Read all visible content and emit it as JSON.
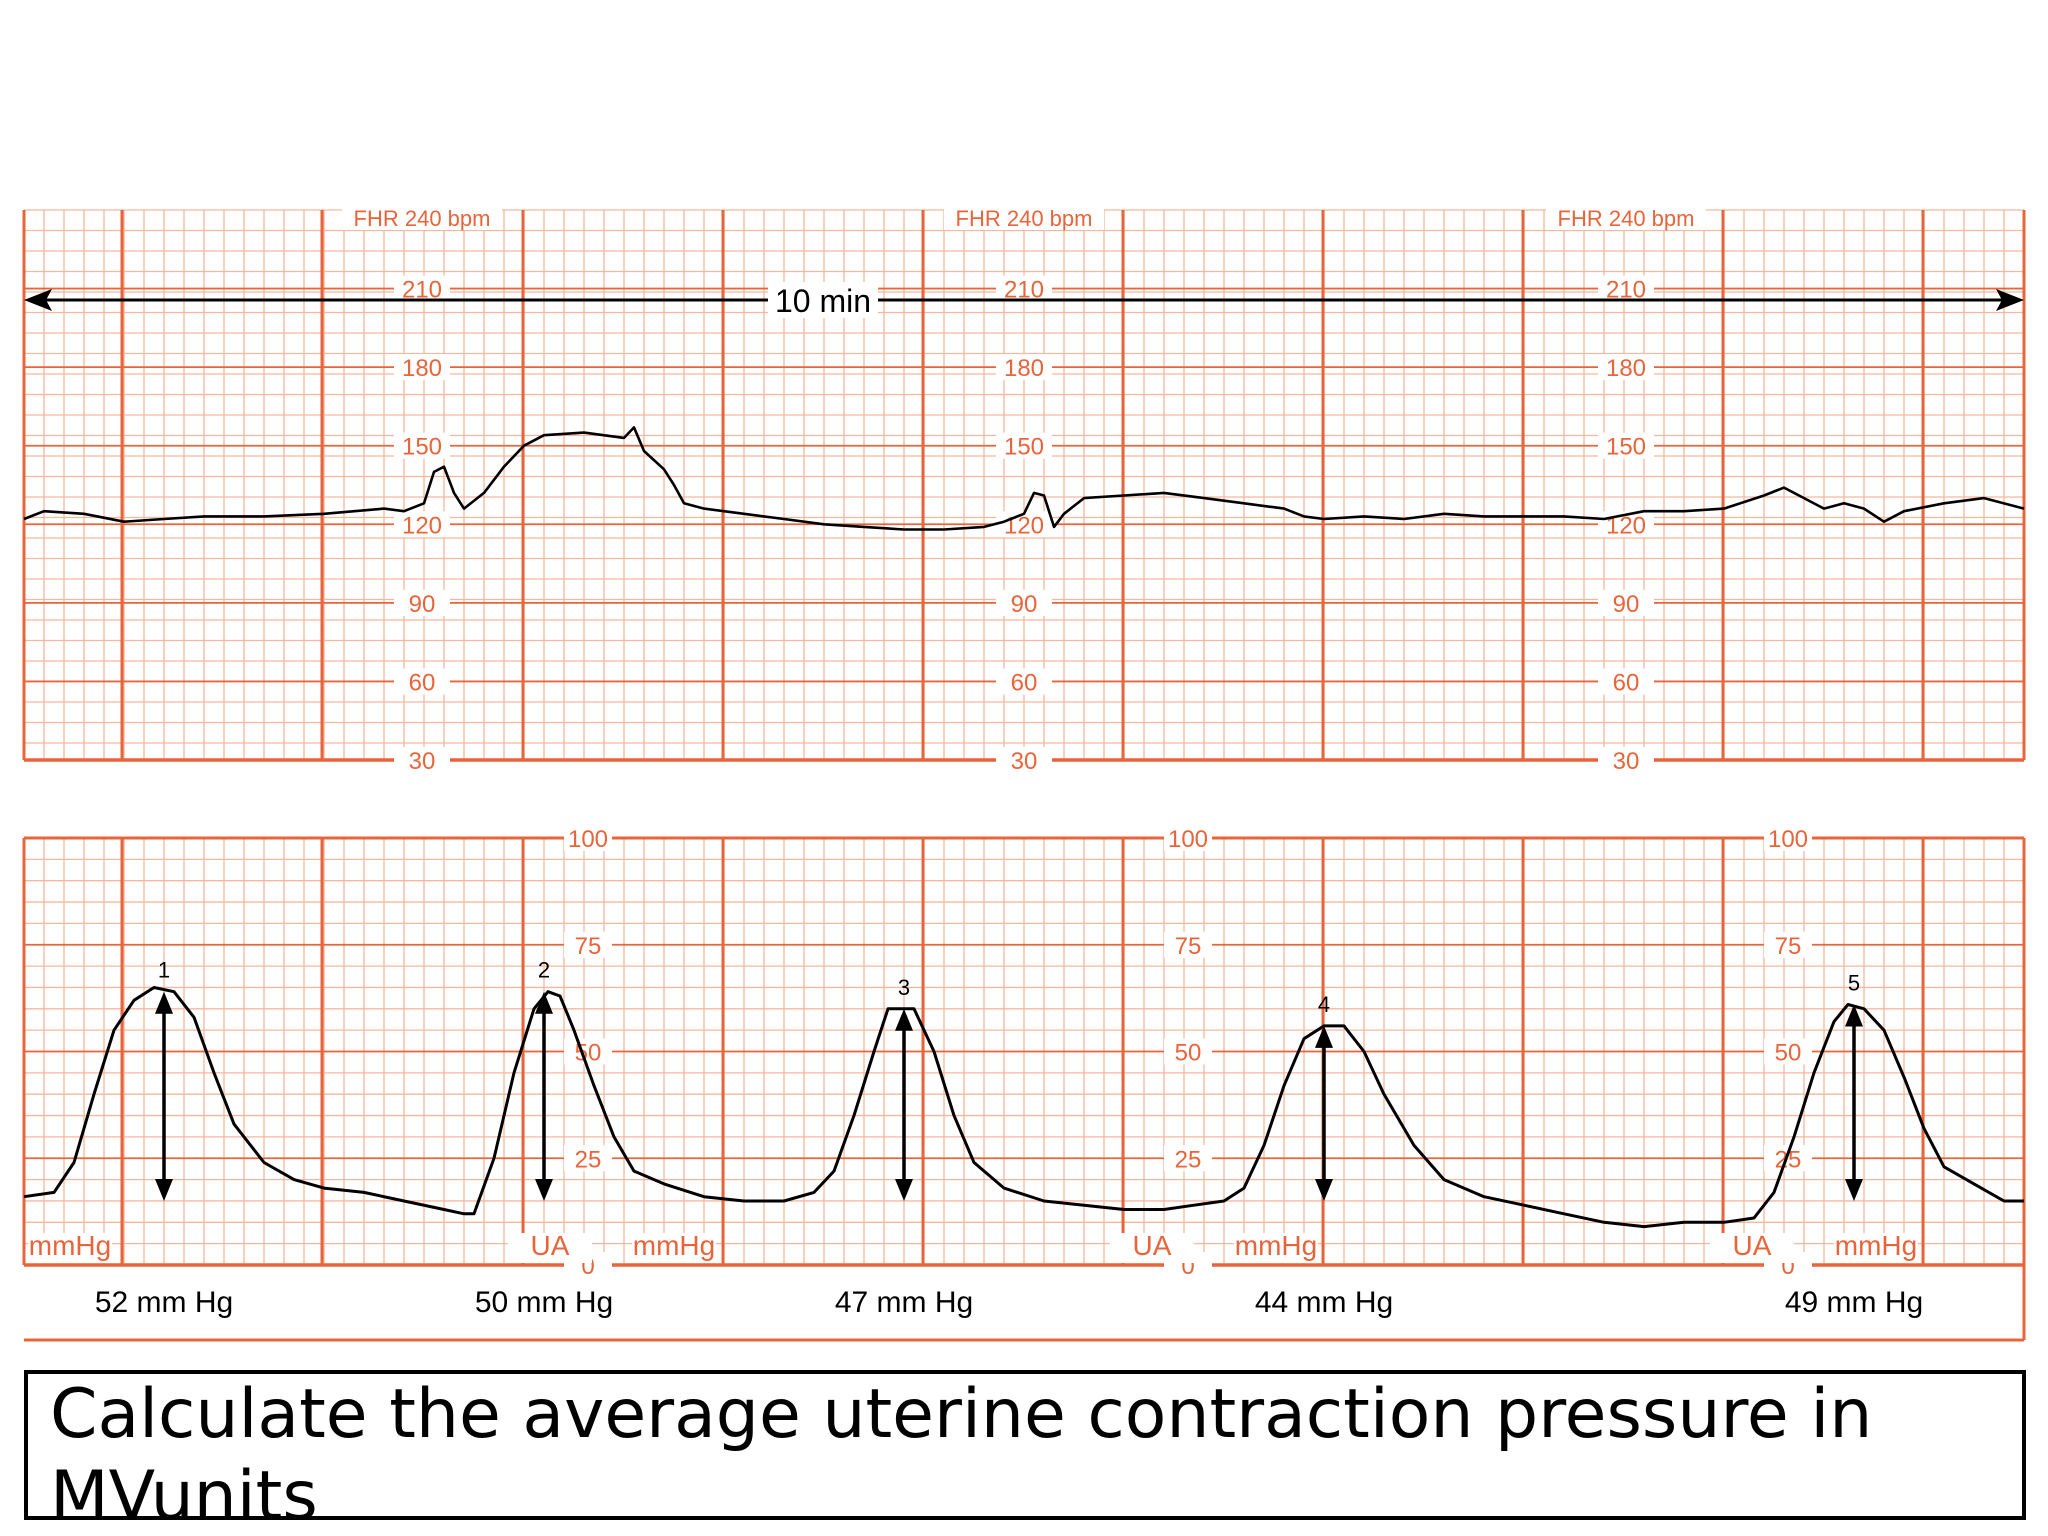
{
  "colors": {
    "grid_minor": "#f5b79e",
    "grid_major": "#e8643a",
    "trace": "#000000",
    "background": "#ffffff"
  },
  "chart_data": [
    {
      "type": "line",
      "title": "",
      "scale_label": "FHR 240 bpm",
      "duration_label": "10 min",
      "xlabel": "",
      "ylabel": "",
      "xlim": [
        0,
        10
      ],
      "ylim": [
        30,
        240
      ],
      "yticks": [
        "210",
        "180",
        "150",
        "120",
        "90",
        "60",
        "30"
      ],
      "series": [
        {
          "points": [
            [
              0.0,
              122
            ],
            [
              0.1,
              125
            ],
            [
              0.3,
              124
            ],
            [
              0.5,
              121
            ],
            [
              0.7,
              122
            ],
            [
              0.9,
              123
            ],
            [
              1.2,
              123
            ],
            [
              1.5,
              124
            ],
            [
              1.8,
              126
            ],
            [
              1.9,
              125
            ],
            [
              2.0,
              128
            ],
            [
              2.05,
              140
            ],
            [
              2.1,
              142
            ],
            [
              2.15,
              132
            ],
            [
              2.2,
              126
            ],
            [
              2.3,
              132
            ],
            [
              2.4,
              142
            ],
            [
              2.5,
              150
            ],
            [
              2.6,
              154
            ],
            [
              2.8,
              155
            ],
            [
              3.0,
              153
            ],
            [
              3.05,
              157
            ],
            [
              3.1,
              148
            ],
            [
              3.2,
              141
            ],
            [
              3.25,
              135
            ],
            [
              3.3,
              128
            ],
            [
              3.4,
              126
            ],
            [
              3.6,
              124
            ],
            [
              3.8,
              122
            ],
            [
              4.0,
              120
            ],
            [
              4.2,
              119
            ],
            [
              4.4,
              118
            ],
            [
              4.6,
              118
            ],
            [
              4.8,
              119
            ],
            [
              4.9,
              121
            ],
            [
              5.0,
              124
            ],
            [
              5.05,
              132
            ],
            [
              5.1,
              131
            ],
            [
              5.15,
              119
            ],
            [
              5.2,
              124
            ],
            [
              5.3,
              130
            ],
            [
              5.5,
              131
            ],
            [
              5.7,
              132
            ],
            [
              5.9,
              130
            ],
            [
              6.1,
              128
            ],
            [
              6.3,
              126
            ],
            [
              6.4,
              123
            ],
            [
              6.5,
              122
            ],
            [
              6.7,
              123
            ],
            [
              6.9,
              122
            ],
            [
              7.1,
              124
            ],
            [
              7.3,
              123
            ],
            [
              7.5,
              123
            ],
            [
              7.7,
              123
            ],
            [
              7.9,
              122
            ],
            [
              8.1,
              125
            ],
            [
              8.3,
              125
            ],
            [
              8.5,
              126
            ],
            [
              8.7,
              131
            ],
            [
              8.8,
              134
            ],
            [
              8.9,
              130
            ],
            [
              9.0,
              126
            ],
            [
              9.1,
              128
            ],
            [
              9.2,
              126
            ],
            [
              9.3,
              121
            ],
            [
              9.4,
              125
            ],
            [
              9.6,
              128
            ],
            [
              9.8,
              130
            ],
            [
              10.0,
              126
            ]
          ]
        }
      ]
    },
    {
      "type": "line",
      "title": "",
      "xlabel": "",
      "ylabel": "",
      "xlim": [
        0,
        10
      ],
      "ylim": [
        0,
        100
      ],
      "yticks": [
        "100",
        "75",
        "50",
        "25",
        "0"
      ],
      "unit_labels": [
        "mmHg",
        "UA",
        "mmHg",
        "UA",
        "mmHg",
        "UA",
        "mmHg"
      ],
      "series": [
        {
          "points": [
            [
              0.0,
              16
            ],
            [
              0.15,
              17
            ],
            [
              0.25,
              24
            ],
            [
              0.35,
              40
            ],
            [
              0.45,
              55
            ],
            [
              0.55,
              62
            ],
            [
              0.65,
              65
            ],
            [
              0.75,
              64
            ],
            [
              0.85,
              58
            ],
            [
              0.95,
              45
            ],
            [
              1.05,
              33
            ],
            [
              1.2,
              24
            ],
            [
              1.35,
              20
            ],
            [
              1.5,
              18
            ],
            [
              1.7,
              17
            ],
            [
              1.9,
              15
            ],
            [
              2.1,
              13
            ],
            [
              2.2,
              12
            ],
            [
              2.25,
              12
            ],
            [
              2.35,
              25
            ],
            [
              2.45,
              45
            ],
            [
              2.55,
              60
            ],
            [
              2.62,
              64
            ],
            [
              2.68,
              63
            ],
            [
              2.75,
              55
            ],
            [
              2.85,
              42
            ],
            [
              2.95,
              30
            ],
            [
              3.05,
              22
            ],
            [
              3.2,
              19
            ],
            [
              3.4,
              16
            ],
            [
              3.6,
              15
            ],
            [
              3.8,
              15
            ],
            [
              3.95,
              17
            ],
            [
              4.05,
              22
            ],
            [
              4.15,
              35
            ],
            [
              4.25,
              50
            ],
            [
              4.32,
              60
            ],
            [
              4.45,
              60
            ],
            [
              4.55,
              50
            ],
            [
              4.65,
              35
            ],
            [
              4.75,
              24
            ],
            [
              4.9,
              18
            ],
            [
              5.1,
              15
            ],
            [
              5.3,
              14
            ],
            [
              5.5,
              13
            ],
            [
              5.7,
              13
            ],
            [
              5.85,
              14
            ],
            [
              6.0,
              15
            ],
            [
              6.1,
              18
            ],
            [
              6.2,
              28
            ],
            [
              6.3,
              42
            ],
            [
              6.4,
              53
            ],
            [
              6.5,
              56
            ],
            [
              6.6,
              56
            ],
            [
              6.7,
              50
            ],
            [
              6.8,
              40
            ],
            [
              6.95,
              28
            ],
            [
              7.1,
              20
            ],
            [
              7.3,
              16
            ],
            [
              7.5,
              14
            ],
            [
              7.7,
              12
            ],
            [
              7.9,
              10
            ],
            [
              8.1,
              9
            ],
            [
              8.3,
              10
            ],
            [
              8.5,
              10
            ],
            [
              8.65,
              11
            ],
            [
              8.75,
              17
            ],
            [
              8.85,
              30
            ],
            [
              8.95,
              45
            ],
            [
              9.05,
              57
            ],
            [
              9.12,
              61
            ],
            [
              9.2,
              60
            ],
            [
              9.3,
              55
            ],
            [
              9.4,
              44
            ],
            [
              9.5,
              32
            ],
            [
              9.6,
              23
            ],
            [
              9.75,
              19
            ],
            [
              9.9,
              15
            ],
            [
              10.0,
              15
            ]
          ]
        }
      ],
      "contractions": [
        {
          "number": "1",
          "x": 0.7,
          "peak": 64,
          "label": "52 mm Hg"
        },
        {
          "number": "2",
          "x": 2.6,
          "peak": 64,
          "label": "50 mm Hg"
        },
        {
          "number": "3",
          "x": 4.4,
          "peak": 60,
          "label": "47 mm Hg"
        },
        {
          "number": "4",
          "x": 6.5,
          "peak": 56,
          "label": "44 mm Hg"
        },
        {
          "number": "5",
          "x": 9.15,
          "peak": 61,
          "label": "49 mm Hg"
        }
      ]
    }
  ],
  "question": {
    "text": "Calculate the average uterine contraction pressure in MVunits"
  }
}
